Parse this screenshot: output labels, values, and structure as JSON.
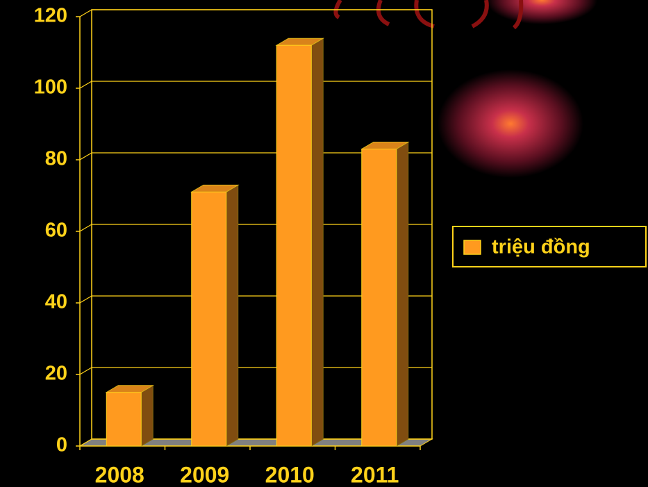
{
  "chart_data": {
    "type": "bar",
    "categories": [
      "2008",
      "2009",
      "2010",
      "2011"
    ],
    "series": [
      {
        "name": "triệu đồng",
        "color": "#ff9a1f",
        "values": [
          15,
          71,
          112,
          83
        ]
      }
    ],
    "ylim": [
      0,
      120
    ],
    "yticks": [
      0,
      20,
      40,
      60,
      80,
      100,
      120
    ],
    "grid": true
  }
}
